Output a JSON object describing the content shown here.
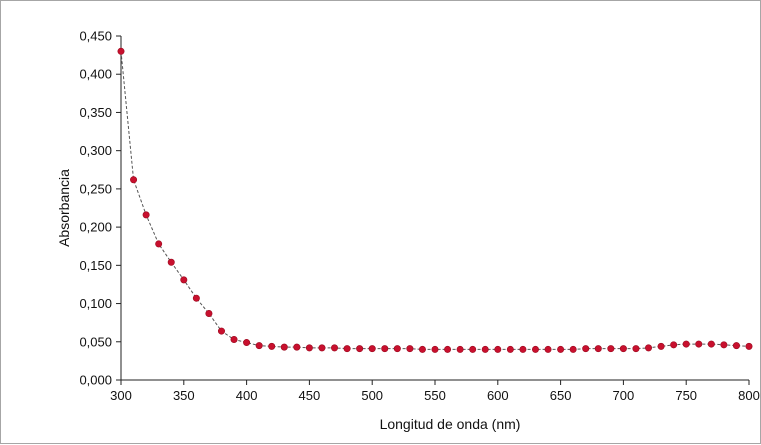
{
  "chart_data": {
    "type": "line",
    "title": "",
    "xlabel": "Longitud de onda (nm)",
    "ylabel": "Absorbancia",
    "xlim": [
      300,
      800
    ],
    "ylim": [
      0,
      0.45
    ],
    "x_tick_labels": [
      "300",
      "350",
      "400",
      "450",
      "500",
      "550",
      "600",
      "650",
      "700",
      "750",
      "800"
    ],
    "y_tick_labels": [
      "0,000",
      "0,050",
      "0,100",
      "0,150",
      "0,200",
      "0,250",
      "0,300",
      "0,350",
      "0,400",
      "0,450"
    ],
    "x_ticks": [
      300,
      350,
      400,
      450,
      500,
      550,
      600,
      650,
      700,
      750,
      800
    ],
    "y_ticks": [
      0,
      0.05,
      0.1,
      0.15,
      0.2,
      0.25,
      0.3,
      0.35,
      0.4,
      0.45
    ],
    "grid": false,
    "legend": false,
    "line_color": "#555555",
    "marker_color": "#c8102e",
    "series": [
      {
        "x": [
          300,
          310,
          320,
          330,
          340,
          350,
          360,
          370,
          380,
          390,
          400,
          410,
          420,
          430,
          440,
          450,
          460,
          470,
          480,
          490,
          500,
          510,
          520,
          530,
          540,
          550,
          560,
          570,
          580,
          590,
          600,
          610,
          620,
          630,
          640,
          650,
          660,
          670,
          680,
          690,
          700,
          710,
          720,
          730,
          740,
          750,
          760,
          770,
          780,
          790,
          800
        ],
        "y": [
          0.43,
          0.262,
          0.216,
          0.178,
          0.154,
          0.131,
          0.107,
          0.087,
          0.064,
          0.053,
          0.049,
          0.045,
          0.044,
          0.043,
          0.043,
          0.042,
          0.042,
          0.042,
          0.041,
          0.041,
          0.041,
          0.041,
          0.041,
          0.041,
          0.04,
          0.04,
          0.04,
          0.04,
          0.04,
          0.04,
          0.04,
          0.04,
          0.04,
          0.04,
          0.04,
          0.04,
          0.04,
          0.041,
          0.041,
          0.041,
          0.041,
          0.041,
          0.042,
          0.044,
          0.046,
          0.047,
          0.047,
          0.047,
          0.046,
          0.045,
          0.044
        ]
      }
    ]
  }
}
